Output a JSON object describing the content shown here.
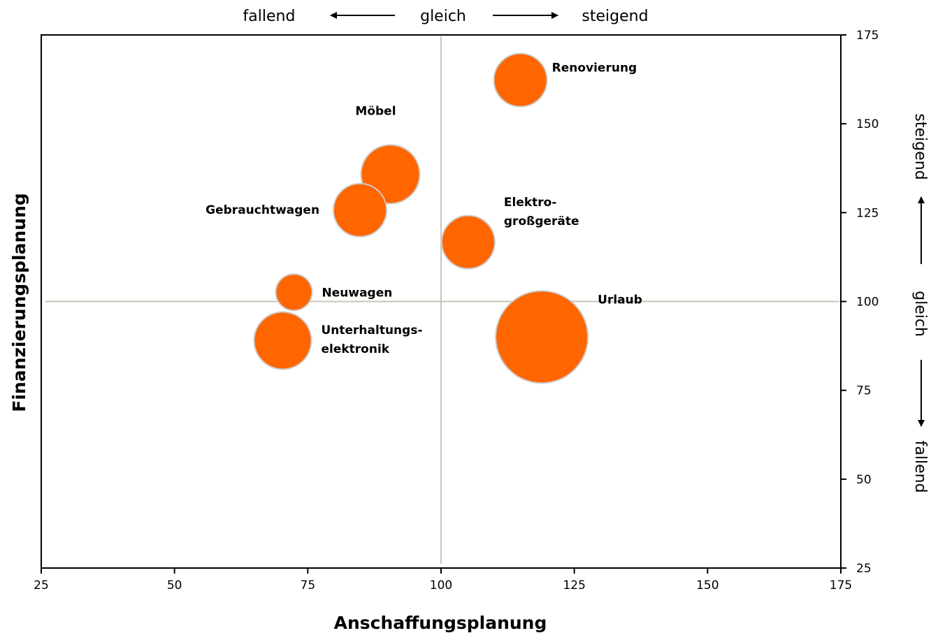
{
  "chart_data": {
    "type": "bubble",
    "xlabel": "Anschaffungsplanung",
    "ylabel": "Finanzierungsplanung",
    "xlim": [
      25,
      175
    ],
    "ylim": [
      25,
      175
    ],
    "xticks": [
      "25",
      "50",
      "75",
      "100",
      "125",
      "150",
      "175"
    ],
    "yticks": [
      "25",
      "50",
      "75",
      "100",
      "125",
      "150",
      "175"
    ],
    "reference_lines": {
      "x": 100,
      "y": 100
    },
    "bubble_color": "#ff6600",
    "bubble_edge_color": "#cccccc",
    "points": [
      {
        "label": [
          "Renovierung"
        ],
        "x": 114.9,
        "y": 162.3,
        "size": 38
      },
      {
        "label": [
          "Möbel"
        ],
        "x": 90.5,
        "y": 135.8,
        "size": 42
      },
      {
        "label": [
          "Gebrauchtwagen"
        ],
        "x": 84.8,
        "y": 125.7,
        "size": 38
      },
      {
        "label": [
          "Elektro-",
          "großgeräte"
        ],
        "x": 105.1,
        "y": 116.7,
        "size": 38
      },
      {
        "label": [
          "Neuwagen"
        ],
        "x": 72.4,
        "y": 102.6,
        "size": 26
      },
      {
        "label": [
          "Unterhaltungs-",
          "elektronik"
        ],
        "x": 70.3,
        "y": 89.0,
        "size": 41
      },
      {
        "label": [
          "Urlaub"
        ],
        "x": 118.9,
        "y": 90.0,
        "size": 66
      }
    ],
    "top_direction": {
      "left": "fallend",
      "center": "gleich",
      "right": "steigend"
    },
    "right_direction": {
      "top": "steigend",
      "center": "gleich",
      "bottom": "fallend"
    }
  }
}
